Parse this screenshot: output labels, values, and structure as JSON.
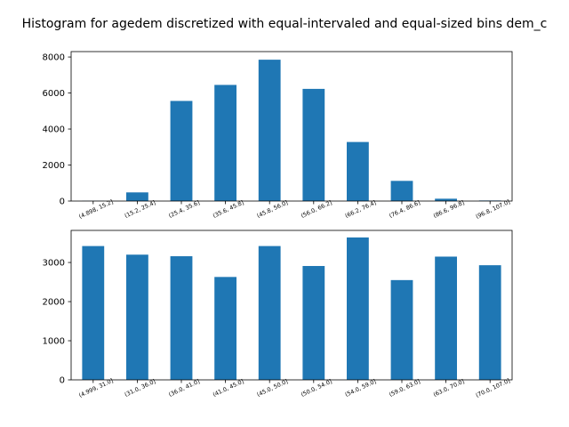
{
  "title": "Histogram for agedem discretized with equal-intervaled and equal-sized bins dem_c",
  "colors": {
    "bar": "#1f77b4",
    "axes": "#000000",
    "background": "#ffffff"
  },
  "chart_data": [
    {
      "type": "bar",
      "categories": [
        "(4.898, 15.2]",
        "(15.2, 25.4]",
        "(25.4, 35.6]",
        "(35.6, 45.8]",
        "(45.8, 56.0]",
        "(56.0, 66.2]",
        "(66.2, 76.4]",
        "(76.4, 86.6]",
        "(86.6, 96.8]",
        "(96.8, 107.0]"
      ],
      "values": [
        10,
        480,
        5560,
        6450,
        7850,
        6230,
        3280,
        1120,
        130,
        30
      ],
      "ylim": [
        0,
        8300
      ],
      "yticks": [
        0,
        2000,
        4000,
        6000,
        8000
      ],
      "xlabel": "",
      "ylabel": "",
      "grid": false
    },
    {
      "type": "bar",
      "categories": [
        "(4.999, 31.0]",
        "(31.0, 36.0]",
        "(36.0, 41.0]",
        "(41.0, 45.0]",
        "(45.0, 50.0]",
        "(50.0, 54.0]",
        "(54.0, 59.0]",
        "(59.0, 63.0]",
        "(63.0, 70.0]",
        "(70.0, 107.0]"
      ],
      "values": [
        3420,
        3200,
        3160,
        2630,
        3420,
        2910,
        3640,
        2550,
        3150,
        2930
      ],
      "ylim": [
        0,
        3820
      ],
      "yticks": [
        0,
        1000,
        2000,
        3000
      ],
      "xlabel": "",
      "ylabel": "",
      "grid": false
    }
  ]
}
